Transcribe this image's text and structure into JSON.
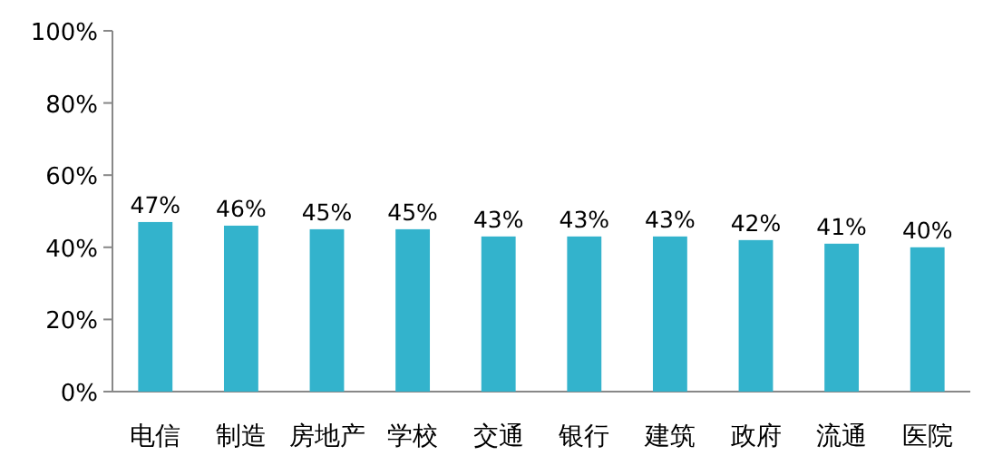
{
  "chart_data": {
    "type": "bar",
    "categories": [
      "电信",
      "制造",
      "房地产",
      "学校",
      "交通",
      "银行",
      "建筑",
      "政府",
      "流通",
      "医院"
    ],
    "values": [
      47,
      46,
      45,
      45,
      43,
      43,
      43,
      42,
      41,
      40
    ],
    "value_labels": [
      "47%",
      "46%",
      "45%",
      "45%",
      "43%",
      "43%",
      "43%",
      "42%",
      "41%",
      "40%"
    ],
    "color": "#33b3cc",
    "ylim": [
      0,
      100
    ],
    "yticks": [
      {
        "value": 0,
        "label": "0%"
      },
      {
        "value": 20,
        "label": "20%"
      },
      {
        "value": 40,
        "label": "40%"
      },
      {
        "value": 60,
        "label": "60%"
      },
      {
        "value": 80,
        "label": "80%"
      },
      {
        "value": 100,
        "label": "100%"
      }
    ],
    "grid": false
  }
}
